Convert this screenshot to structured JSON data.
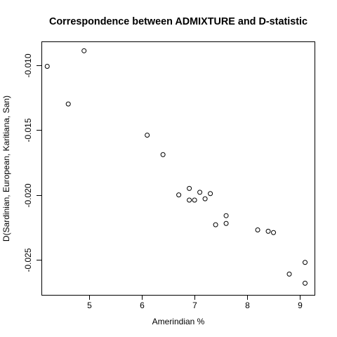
{
  "chart_data": {
    "type": "scatter",
    "title": "Correspondence between ADMIXTURE and D-statistic",
    "xlabel": "Amerindian %",
    "ylabel": "D(Sardinian, European, Karitiana, San)",
    "xlim": [
      4.09,
      9.28
    ],
    "ylim": [
      -0.0277,
      -0.00818
    ],
    "x_ticks": [
      5,
      6,
      7,
      8,
      9
    ],
    "x_tick_labels": [
      "5",
      "6",
      "7",
      "8",
      "9"
    ],
    "y_ticks": [
      -0.01,
      -0.015,
      -0.02,
      -0.025
    ],
    "y_tick_labels": [
      "-0.010",
      "-0.015",
      "-0.020",
      "-0.025"
    ],
    "grid": false,
    "legend": "none",
    "marker": "open-circle",
    "points": [
      {
        "x": 4.2,
        "y": -0.0101
      },
      {
        "x": 4.6,
        "y": -0.013
      },
      {
        "x": 4.9,
        "y": -0.0089
      },
      {
        "x": 6.1,
        "y": -0.0154
      },
      {
        "x": 6.4,
        "y": -0.0169
      },
      {
        "x": 6.7,
        "y": -0.02
      },
      {
        "x": 6.9,
        "y": -0.0195
      },
      {
        "x": 6.9,
        "y": -0.0204
      },
      {
        "x": 7.0,
        "y": -0.0204
      },
      {
        "x": 7.1,
        "y": -0.0198
      },
      {
        "x": 7.2,
        "y": -0.0203
      },
      {
        "x": 7.3,
        "y": -0.0199
      },
      {
        "x": 7.4,
        "y": -0.0223
      },
      {
        "x": 7.6,
        "y": -0.0216
      },
      {
        "x": 7.6,
        "y": -0.0222
      },
      {
        "x": 8.2,
        "y": -0.0227
      },
      {
        "x": 8.4,
        "y": -0.0228
      },
      {
        "x": 8.5,
        "y": -0.0229
      },
      {
        "x": 8.8,
        "y": -0.0261
      },
      {
        "x": 9.1,
        "y": -0.0252
      },
      {
        "x": 9.1,
        "y": -0.0268
      }
    ]
  }
}
